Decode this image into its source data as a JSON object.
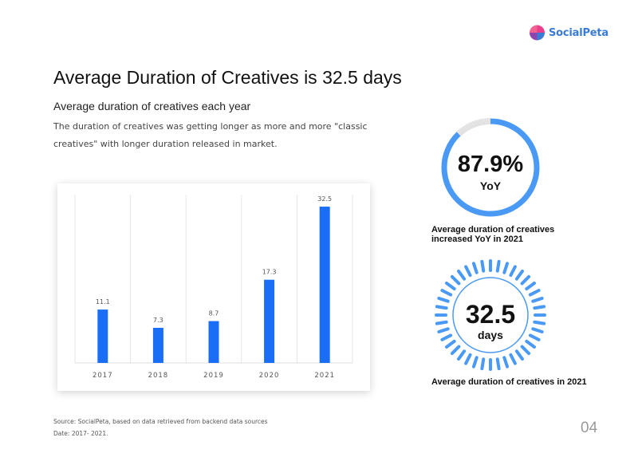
{
  "brand": {
    "name": "SocialPeta"
  },
  "title": "Average Duration of Creatives is 32.5 days",
  "subtitle": "Average duration of creatives each year",
  "description": "The duration of creatives was getting longer as more and more \"classic creatives\" with longer duration released in market.",
  "chart_data": {
    "type": "bar",
    "categories": [
      "2017",
      "2018",
      "2019",
      "2020",
      "2021"
    ],
    "values": [
      11.1,
      7.3,
      8.7,
      17.3,
      32.5
    ],
    "data_labels": [
      "11.1",
      "7.3",
      "8.7",
      "17.3",
      "32.5"
    ],
    "title": "",
    "xlabel": "",
    "ylabel": "",
    "ylim": [
      0,
      35
    ],
    "grid": "vertical",
    "bar_color": "#1a6ef5"
  },
  "kpis": {
    "yoy": {
      "value": "87.9%",
      "unit": "YoY",
      "fraction": 0.879,
      "caption": "Average duration of creatives increased YoY in 2021"
    },
    "duration": {
      "value": "32.5",
      "unit": "days",
      "caption": "Average duration of creatives in 2021"
    }
  },
  "colors": {
    "accent": "#4a9af5",
    "track": "#dddddd"
  },
  "footer": {
    "source": "Source: SocialPeta, based on data retrieved from backend data sources",
    "date": "Date: 2017- 2021.",
    "page": "04"
  }
}
